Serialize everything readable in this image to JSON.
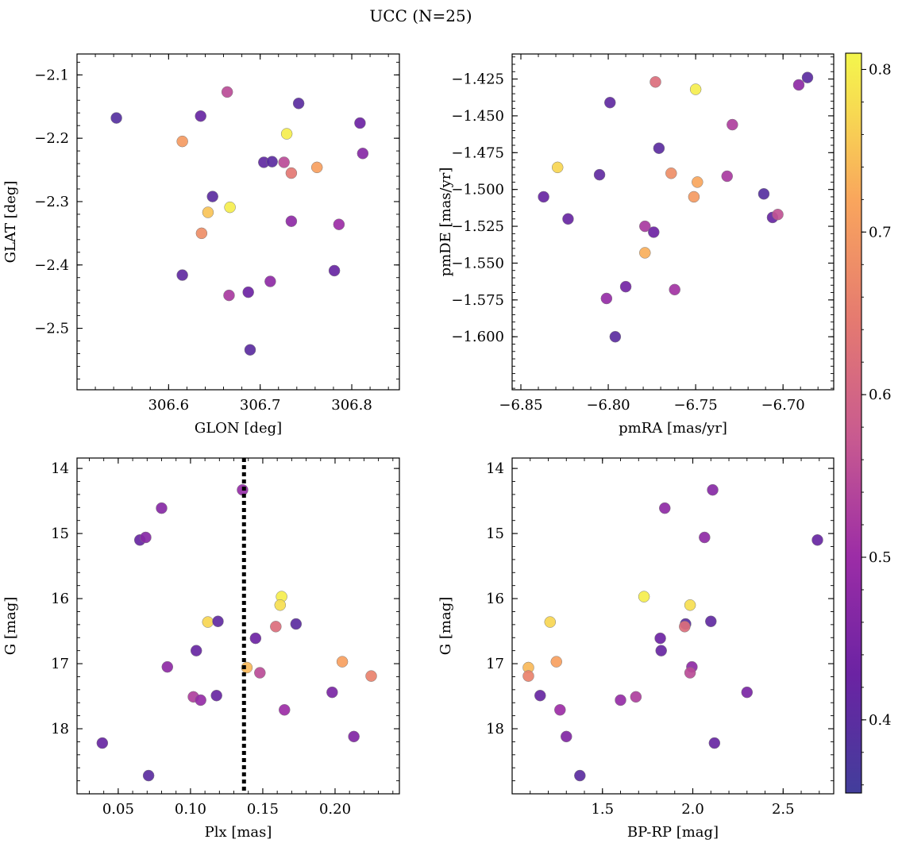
{
  "suptitle": "UCC (N=25)",
  "colorbar": {
    "colormap": "plasma",
    "range": [
      0.355,
      0.81
    ],
    "ticks": [
      0.4,
      0.5,
      0.6,
      0.7,
      0.8
    ]
  },
  "chart_data": [
    {
      "type": "scatter",
      "panel": "top-left",
      "xlabel": "GLON [deg]",
      "ylabel": "GLAT [deg]",
      "xlim": [
        306.5,
        306.852
      ],
      "ylim": [
        -2.597,
        -2.067
      ],
      "xticks": [
        306.6,
        306.7,
        306.8
      ],
      "yticks": [
        -2.5,
        -2.4,
        -2.3,
        -2.2,
        -2.1
      ],
      "points": [
        {
          "x": 306.543,
          "y": -2.168,
          "c": 0.39
        },
        {
          "x": 306.615,
          "y": -2.205,
          "c": 0.7
        },
        {
          "x": 306.635,
          "y": -2.165,
          "c": 0.42
        },
        {
          "x": 306.664,
          "y": -2.127,
          "c": 0.55
        },
        {
          "x": 306.742,
          "y": -2.145,
          "c": 0.4
        },
        {
          "x": 306.729,
          "y": -2.193,
          "c": 0.8
        },
        {
          "x": 306.809,
          "y": -2.176,
          "c": 0.43
        },
        {
          "x": 306.812,
          "y": -2.224,
          "c": 0.47
        },
        {
          "x": 306.704,
          "y": -2.238,
          "c": 0.41
        },
        {
          "x": 306.713,
          "y": -2.237,
          "c": 0.4
        },
        {
          "x": 306.726,
          "y": -2.238,
          "c": 0.55
        },
        {
          "x": 306.734,
          "y": -2.255,
          "c": 0.64
        },
        {
          "x": 306.762,
          "y": -2.246,
          "c": 0.71
        },
        {
          "x": 306.648,
          "y": -2.292,
          "c": 0.4
        },
        {
          "x": 306.643,
          "y": -2.317,
          "c": 0.75
        },
        {
          "x": 306.667,
          "y": -2.309,
          "c": 0.8
        },
        {
          "x": 306.636,
          "y": -2.35,
          "c": 0.68
        },
        {
          "x": 306.734,
          "y": -2.331,
          "c": 0.48
        },
        {
          "x": 306.786,
          "y": -2.336,
          "c": 0.5
        },
        {
          "x": 306.615,
          "y": -2.416,
          "c": 0.41
        },
        {
          "x": 306.711,
          "y": -2.426,
          "c": 0.48
        },
        {
          "x": 306.781,
          "y": -2.409,
          "c": 0.42
        },
        {
          "x": 306.666,
          "y": -2.448,
          "c": 0.52
        },
        {
          "x": 306.687,
          "y": -2.443,
          "c": 0.43
        },
        {
          "x": 306.689,
          "y": -2.534,
          "c": 0.4
        }
      ]
    },
    {
      "type": "scatter",
      "panel": "top-right",
      "xlabel": "pmRA [mas/yr]",
      "ylabel": "pmDE [mas/yr]",
      "xlim": [
        -6.855,
        -6.671
      ],
      "ylim": [
        -1.636,
        -1.408
      ],
      "xticks": [
        -6.85,
        -6.8,
        -6.75,
        -6.7
      ],
      "yticks": [
        -1.425,
        -1.45,
        -1.475,
        -1.5,
        -1.525,
        -1.55,
        -1.575,
        -1.6
      ],
      "points": [
        {
          "x": -6.773,
          "y": -1.427,
          "c": 0.62
        },
        {
          "x": -6.75,
          "y": -1.432,
          "c": 0.8
        },
        {
          "x": -6.686,
          "y": -1.424,
          "c": 0.4
        },
        {
          "x": -6.691,
          "y": -1.429,
          "c": 0.48
        },
        {
          "x": -6.799,
          "y": -1.441,
          "c": 0.41
        },
        {
          "x": -6.729,
          "y": -1.456,
          "c": 0.53
        },
        {
          "x": -6.771,
          "y": -1.472,
          "c": 0.4
        },
        {
          "x": -6.829,
          "y": -1.485,
          "c": 0.77
        },
        {
          "x": -6.805,
          "y": -1.49,
          "c": 0.41
        },
        {
          "x": -6.764,
          "y": -1.489,
          "c": 0.68
        },
        {
          "x": -6.749,
          "y": -1.495,
          "c": 0.72
        },
        {
          "x": -6.732,
          "y": -1.491,
          "c": 0.52
        },
        {
          "x": -6.751,
          "y": -1.505,
          "c": 0.7
        },
        {
          "x": -6.837,
          "y": -1.505,
          "c": 0.42
        },
        {
          "x": -6.711,
          "y": -1.503,
          "c": 0.39
        },
        {
          "x": -6.823,
          "y": -1.52,
          "c": 0.42
        },
        {
          "x": -6.706,
          "y": -1.519,
          "c": 0.42
        },
        {
          "x": -6.703,
          "y": -1.517,
          "c": 0.56
        },
        {
          "x": -6.779,
          "y": -1.525,
          "c": 0.52
        },
        {
          "x": -6.774,
          "y": -1.529,
          "c": 0.43
        },
        {
          "x": -6.779,
          "y": -1.543,
          "c": 0.73
        },
        {
          "x": -6.79,
          "y": -1.566,
          "c": 0.44
        },
        {
          "x": -6.762,
          "y": -1.568,
          "c": 0.51
        },
        {
          "x": -6.801,
          "y": -1.574,
          "c": 0.49
        },
        {
          "x": -6.796,
          "y": -1.6,
          "c": 0.4
        }
      ]
    },
    {
      "type": "scatter",
      "panel": "bottom-left",
      "xlabel": "Plx [mas]",
      "ylabel": "G [mag]",
      "xlim": [
        0.0215,
        0.2445
      ],
      "ylim": [
        19.0,
        13.84
      ],
      "y_inverted": true,
      "xticks": [
        0.05,
        0.1,
        0.15,
        0.2
      ],
      "yticks": [
        14,
        15,
        16,
        17,
        18
      ],
      "vline": {
        "x": 0.137,
        "style": "dotted"
      },
      "points": [
        {
          "x": 0.136,
          "y": 14.33,
          "c": 0.49
        },
        {
          "x": 0.08,
          "y": 14.61,
          "c": 0.47
        },
        {
          "x": 0.065,
          "y": 15.1,
          "c": 0.42
        },
        {
          "x": 0.069,
          "y": 15.06,
          "c": 0.47
        },
        {
          "x": 0.163,
          "y": 15.97,
          "c": 0.8
        },
        {
          "x": 0.162,
          "y": 16.1,
          "c": 0.78
        },
        {
          "x": 0.112,
          "y": 16.36,
          "c": 0.77
        },
        {
          "x": 0.119,
          "y": 16.35,
          "c": 0.41
        },
        {
          "x": 0.173,
          "y": 16.39,
          "c": 0.4
        },
        {
          "x": 0.159,
          "y": 16.43,
          "c": 0.62
        },
        {
          "x": 0.145,
          "y": 16.61,
          "c": 0.43
        },
        {
          "x": 0.104,
          "y": 16.8,
          "c": 0.42
        },
        {
          "x": 0.139,
          "y": 17.06,
          "c": 0.74
        },
        {
          "x": 0.084,
          "y": 17.05,
          "c": 0.48
        },
        {
          "x": 0.148,
          "y": 17.14,
          "c": 0.55
        },
        {
          "x": 0.205,
          "y": 16.97,
          "c": 0.71
        },
        {
          "x": 0.225,
          "y": 17.19,
          "c": 0.66
        },
        {
          "x": 0.102,
          "y": 17.51,
          "c": 0.53
        },
        {
          "x": 0.107,
          "y": 17.56,
          "c": 0.49
        },
        {
          "x": 0.118,
          "y": 17.49,
          "c": 0.42
        },
        {
          "x": 0.198,
          "y": 17.44,
          "c": 0.45
        },
        {
          "x": 0.165,
          "y": 17.71,
          "c": 0.5
        },
        {
          "x": 0.039,
          "y": 18.22,
          "c": 0.42
        },
        {
          "x": 0.213,
          "y": 18.12,
          "c": 0.46
        },
        {
          "x": 0.071,
          "y": 18.72,
          "c": 0.4
        }
      ]
    },
    {
      "type": "scatter",
      "panel": "bottom-right",
      "xlabel": "BP-RP [mag]",
      "ylabel": "G [mag]",
      "xlim": [
        1.0,
        2.78
      ],
      "ylim": [
        19.0,
        13.84
      ],
      "y_inverted": true,
      "xticks": [
        1.5,
        2.0,
        2.5
      ],
      "yticks": [
        14,
        15,
        16,
        17,
        18
      ],
      "points": [
        {
          "x": 2.11,
          "y": 14.33,
          "c": 0.47
        },
        {
          "x": 1.845,
          "y": 14.61,
          "c": 0.48
        },
        {
          "x": 2.065,
          "y": 15.06,
          "c": 0.48
        },
        {
          "x": 2.69,
          "y": 15.1,
          "c": 0.42
        },
        {
          "x": 1.73,
          "y": 15.97,
          "c": 0.8
        },
        {
          "x": 1.985,
          "y": 16.1,
          "c": 0.78
        },
        {
          "x": 1.21,
          "y": 16.36,
          "c": 0.77
        },
        {
          "x": 2.1,
          "y": 16.35,
          "c": 0.41
        },
        {
          "x": 1.96,
          "y": 16.39,
          "c": 0.4
        },
        {
          "x": 1.955,
          "y": 16.43,
          "c": 0.62
        },
        {
          "x": 1.82,
          "y": 16.61,
          "c": 0.43
        },
        {
          "x": 1.825,
          "y": 16.8,
          "c": 0.42
        },
        {
          "x": 1.245,
          "y": 16.97,
          "c": 0.71
        },
        {
          "x": 1.09,
          "y": 17.06,
          "c": 0.74
        },
        {
          "x": 1.995,
          "y": 17.05,
          "c": 0.48
        },
        {
          "x": 1.09,
          "y": 17.19,
          "c": 0.66
        },
        {
          "x": 1.985,
          "y": 17.14,
          "c": 0.55
        },
        {
          "x": 2.3,
          "y": 17.44,
          "c": 0.45
        },
        {
          "x": 1.155,
          "y": 17.49,
          "c": 0.42
        },
        {
          "x": 1.685,
          "y": 17.51,
          "c": 0.53
        },
        {
          "x": 1.6,
          "y": 17.56,
          "c": 0.49
        },
        {
          "x": 1.265,
          "y": 17.71,
          "c": 0.5
        },
        {
          "x": 2.12,
          "y": 18.22,
          "c": 0.42
        },
        {
          "x": 1.3,
          "y": 18.12,
          "c": 0.46
        },
        {
          "x": 1.375,
          "y": 18.72,
          "c": 0.4
        }
      ]
    }
  ]
}
